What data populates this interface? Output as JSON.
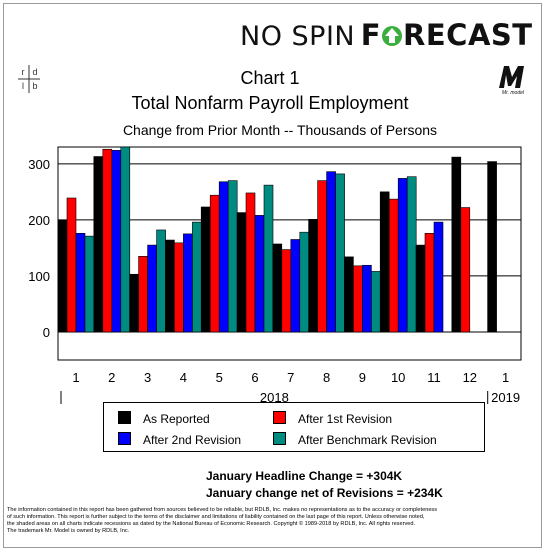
{
  "brand": {
    "no_spin": "NO SPIN",
    "forecast_pre": "F",
    "forecast_post": "RECAST"
  },
  "logos": {
    "rdlb": [
      "r",
      "d",
      "l",
      "b"
    ],
    "mr_model_caption": "Mr. model"
  },
  "header": {
    "chart_number": "Chart 1",
    "title": "Total Nonfarm Payroll Employment",
    "subtitle": "Change from Prior Month -- Thousands of Persons"
  },
  "colors": {
    "as_reported": "#000000",
    "first_revision": "#ff0000",
    "second_revision": "#0000ff",
    "benchmark": "#008b80",
    "brand_green": "#3cae3f"
  },
  "chart_data": {
    "type": "bar",
    "categories": [
      "1",
      "2",
      "3",
      "4",
      "5",
      "6",
      "7",
      "8",
      "9",
      "10",
      "11",
      "12",
      "1"
    ],
    "year_labels": [
      "2018",
      "2019"
    ],
    "ylim": [
      -50,
      330
    ],
    "yticks": [
      0,
      100,
      200,
      300
    ],
    "series": [
      {
        "name": "As Reported",
        "values": [
          200,
          313,
          103,
          164,
          223,
          213,
          157,
          201,
          134,
          250,
          155,
          312,
          304
        ]
      },
      {
        "name": "After 1st Revision",
        "values": [
          239,
          326,
          135,
          159,
          244,
          248,
          147,
          270,
          118,
          237,
          176,
          222,
          null
        ]
      },
      {
        "name": "After 2nd Revision",
        "values": [
          176,
          324,
          155,
          175,
          268,
          208,
          165,
          286,
          119,
          274,
          196,
          null,
          null
        ]
      },
      {
        "name": "After Benchmark Revision",
        "values": [
          171,
          330,
          182,
          196,
          270,
          262,
          178,
          282,
          108,
          277,
          null,
          null,
          null
        ]
      }
    ]
  },
  "legend": [
    {
      "label": "As Reported"
    },
    {
      "label": "After 1st Revision"
    },
    {
      "label": "After 2nd Revision"
    },
    {
      "label": "After Benchmark Revision"
    }
  ],
  "summary": {
    "headline_change": "January Headline Change =  +304K",
    "net_of_revisions": "January change net of Revisions = +234K"
  },
  "disclaimer": [
    "The information contained in this report has been gathered from sources believed to be reliable, but RDLB, Inc. makes no representations as to the accuracy or completeness",
    "of such information. This report is further subject to the terms of the disclaimer and limitations of liability contained on the last page of this report.  Unless otherwise noted,",
    "the shaded areas on all charts indicate recessions as dated by the National Bureau of Economic Research. Copyright © 1989-2018 by RDLB, Inc. All rights reserved.",
    "The trademark Mr. Model is owned by RDLB, Inc."
  ]
}
